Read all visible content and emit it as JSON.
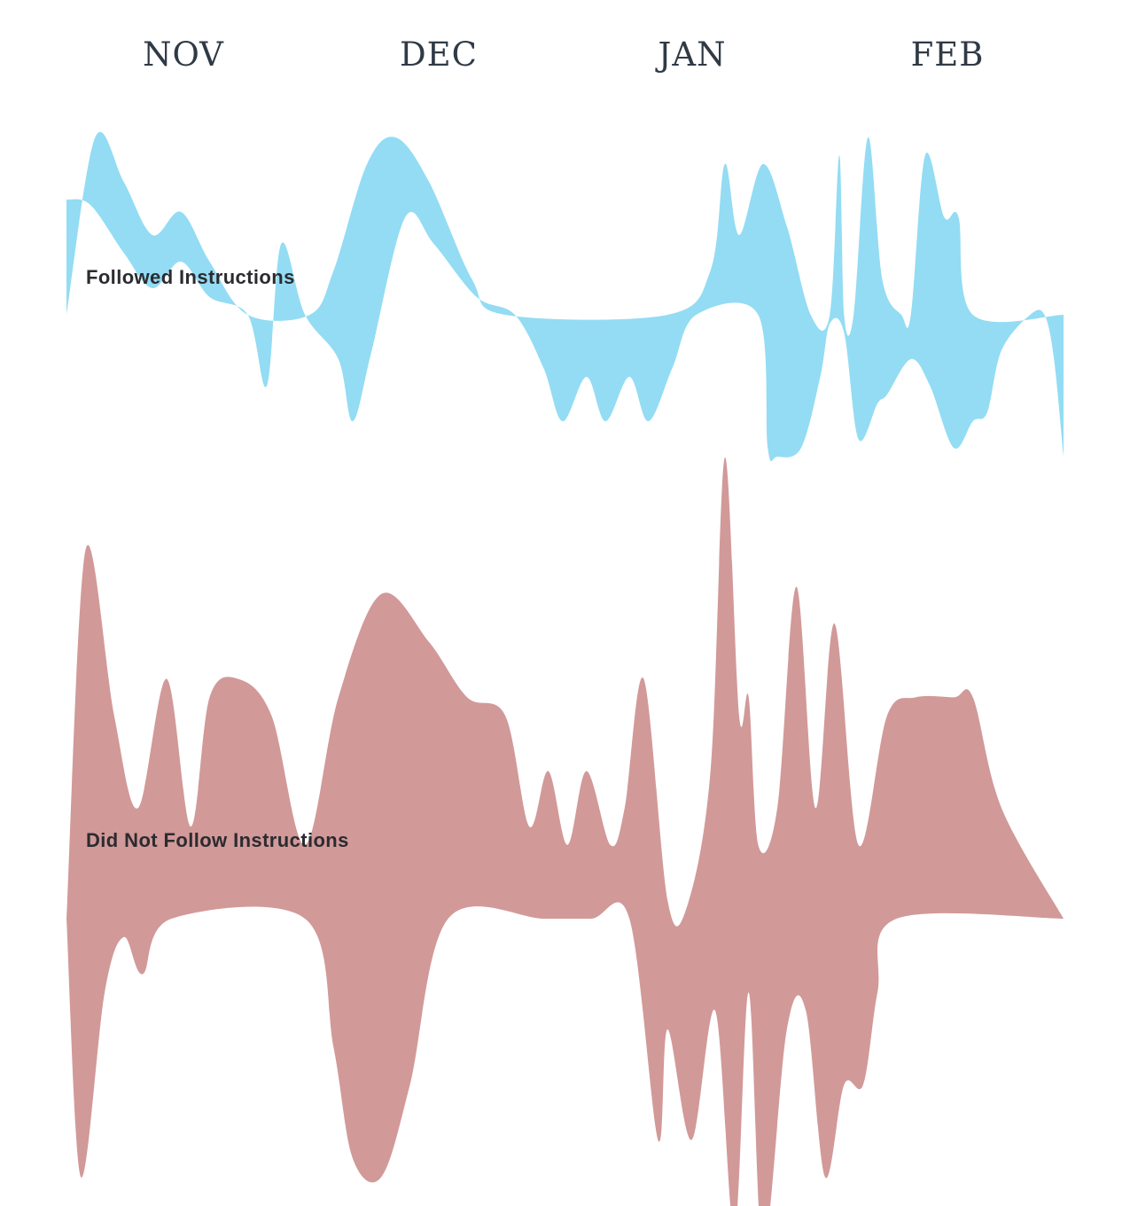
{
  "chart_data": {
    "type": "area",
    "months": [
      "NOV",
      "DEC",
      "JAN",
      "FEB"
    ],
    "series": [
      {
        "name": "Followed Instructions",
        "color": "#93dcf4",
        "upper": [
          [
            0,
            0
          ],
          [
            6,
            1
          ],
          [
            12,
            0.75
          ],
          [
            18,
            0.45
          ],
          [
            24,
            0.58
          ],
          [
            30,
            0.3
          ],
          [
            38,
            0
          ],
          [
            51,
            0
          ],
          [
            56,
            0.25
          ],
          [
            63,
            0.85
          ],
          [
            69,
            1
          ],
          [
            76,
            0.75
          ],
          [
            85,
            0.2
          ],
          [
            92,
            0
          ],
          [
            126,
            0
          ],
          [
            135,
            0.25
          ],
          [
            138,
            0.85
          ],
          [
            141,
            0.45
          ],
          [
            146,
            0.85
          ],
          [
            151,
            0.5
          ],
          [
            156,
            0
          ],
          [
            160,
            0
          ],
          [
            162,
            0.9
          ],
          [
            163,
            0
          ],
          [
            165,
            0
          ],
          [
            168,
            1
          ],
          [
            171,
            0.2
          ],
          [
            175,
            0
          ],
          [
            177,
            0
          ],
          [
            180,
            0.9
          ],
          [
            184,
            0.55
          ],
          [
            187,
            0.55
          ],
          [
            190,
            0
          ],
          [
            209,
            0
          ]
        ],
        "lower": [
          [
            0,
            0.65
          ],
          [
            5,
            0.62
          ],
          [
            12,
            0.35
          ],
          [
            18,
            0.15
          ],
          [
            24,
            0.3
          ],
          [
            30,
            0.1
          ],
          [
            38,
            0
          ],
          [
            42,
            -0.4
          ],
          [
            45,
            0.4
          ],
          [
            50,
            0
          ],
          [
            57,
            -0.25
          ],
          [
            60,
            -0.6
          ],
          [
            64,
            -0.2
          ],
          [
            71,
            0.55
          ],
          [
            77,
            0.4
          ],
          [
            86,
            0.1
          ],
          [
            94,
            0
          ],
          [
            100,
            -0.3
          ],
          [
            104,
            -0.6
          ],
          [
            109,
            -0.35
          ],
          [
            113,
            -0.6
          ],
          [
            118,
            -0.35
          ],
          [
            122,
            -0.6
          ],
          [
            127,
            -0.3
          ],
          [
            132,
            0
          ],
          [
            145,
            0
          ],
          [
            147,
            -0.75
          ],
          [
            149,
            -0.8
          ],
          [
            154,
            -0.75
          ],
          [
            158,
            -0.35
          ],
          [
            160,
            -0.05
          ],
          [
            163,
            -0.1
          ],
          [
            166,
            -0.7
          ],
          [
            170,
            -0.5
          ],
          [
            172,
            -0.45
          ],
          [
            177,
            -0.25
          ],
          [
            181,
            -0.4
          ],
          [
            186,
            -0.75
          ],
          [
            190,
            -0.6
          ],
          [
            193,
            -0.55
          ],
          [
            196,
            -0.2
          ],
          [
            202,
            0
          ],
          [
            205,
            0
          ],
          [
            207,
            -0.25
          ],
          [
            209,
            -0.8
          ]
        ]
      },
      {
        "name": "Did Not Follow Instructions",
        "color": "#d29999",
        "upper": [
          [
            0,
            0
          ],
          [
            4,
            1
          ],
          [
            10,
            0.55
          ],
          [
            15,
            0.3
          ],
          [
            21,
            0.65
          ],
          [
            26,
            0.25
          ],
          [
            30,
            0.6
          ],
          [
            36,
            0.65
          ],
          [
            43,
            0.55
          ],
          [
            50,
            0.2
          ],
          [
            57,
            0.6
          ],
          [
            66,
            0.88
          ],
          [
            76,
            0.75
          ],
          [
            84,
            0.6
          ],
          [
            92,
            0.55
          ],
          [
            97,
            0.25
          ],
          [
            101,
            0.4
          ],
          [
            105,
            0.2
          ],
          [
            109,
            0.4
          ],
          [
            114,
            0.2
          ],
          [
            117,
            0.3
          ],
          [
            121,
            0.65
          ],
          [
            126,
            0.05
          ],
          [
            130,
            0.03
          ],
          [
            135,
            0.4
          ],
          [
            138,
            1.25
          ],
          [
            141,
            0.55
          ],
          [
            143,
            0.6
          ],
          [
            145,
            0.2
          ],
          [
            149,
            0.3
          ],
          [
            153,
            0.9
          ],
          [
            157,
            0.3
          ],
          [
            161,
            0.8
          ],
          [
            166,
            0.2
          ],
          [
            172,
            0.55
          ],
          [
            178,
            0.6
          ],
          [
            186,
            0.6
          ],
          [
            190,
            0.6
          ],
          [
            196,
            0.3
          ],
          [
            209,
            0
          ]
        ],
        "lower": [
          [
            0,
            0
          ],
          [
            3,
            -0.7
          ],
          [
            8,
            -0.2
          ],
          [
            12,
            -0.05
          ],
          [
            16,
            -0.15
          ],
          [
            22,
            0
          ],
          [
            50,
            0
          ],
          [
            56,
            -0.35
          ],
          [
            60,
            -0.65
          ],
          [
            66,
            -0.7
          ],
          [
            72,
            -0.45
          ],
          [
            80,
            0
          ],
          [
            100,
            0
          ],
          [
            110,
            0
          ],
          [
            118,
            0
          ],
          [
            124,
            -0.6
          ],
          [
            126,
            -0.3
          ],
          [
            131,
            -0.6
          ],
          [
            136,
            -0.25
          ],
          [
            140,
            -0.85
          ],
          [
            143,
            -0.2
          ],
          [
            146,
            -0.9
          ],
          [
            151,
            -0.3
          ],
          [
            155,
            -0.25
          ],
          [
            159,
            -0.7
          ],
          [
            163,
            -0.45
          ],
          [
            167,
            -0.45
          ],
          [
            170,
            -0.2
          ],
          [
            174,
            0
          ],
          [
            209,
            0
          ]
        ]
      }
    ]
  }
}
